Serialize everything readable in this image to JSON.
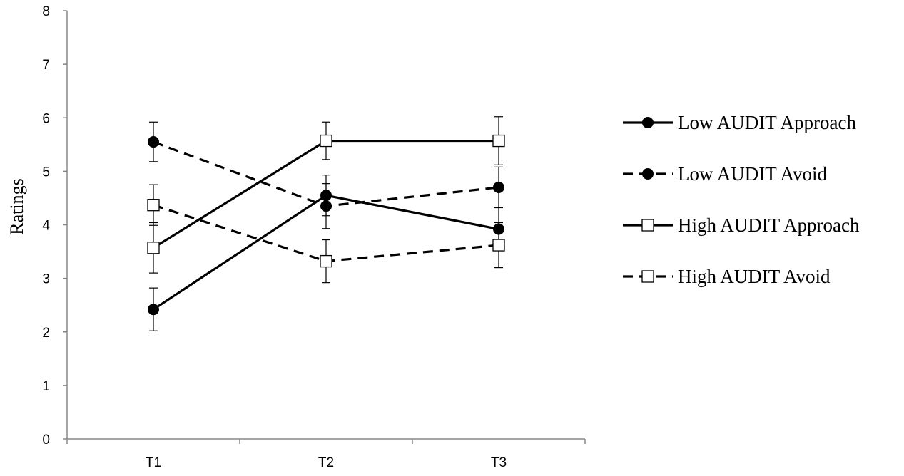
{
  "chart_data": {
    "type": "line",
    "title": "",
    "xlabel": "",
    "ylabel": "Ratings",
    "categories": [
      "T1",
      "T2",
      "T3"
    ],
    "ylim": [
      0,
      8
    ],
    "yticks": [
      "0",
      "1",
      "2",
      "3",
      "4",
      "5",
      "6",
      "7",
      "8"
    ],
    "grid": false,
    "legend_position": "right",
    "series": [
      {
        "name": "Low AUDIT Approach",
        "marker": "filled-circle",
        "line": "solid",
        "values": [
          2.42,
          4.55,
          3.92
        ],
        "error": [
          0.4,
          0.38,
          0.4
        ]
      },
      {
        "name": "Low AUDIT Avoid",
        "marker": "filled-circle",
        "line": "dashed",
        "values": [
          5.55,
          4.35,
          4.7
        ],
        "error": [
          0.37,
          0.42,
          0.38
        ]
      },
      {
        "name": "High AUDIT Approach",
        "marker": "open-square",
        "line": "solid",
        "values": [
          3.57,
          5.57,
          5.57
        ],
        "error": [
          0.47,
          0.35,
          0.45
        ]
      },
      {
        "name": "High AUDIT Avoid",
        "marker": "open-square",
        "line": "dashed",
        "values": [
          4.37,
          3.32,
          3.62
        ],
        "error": [
          0.38,
          0.4,
          0.42
        ]
      }
    ]
  }
}
